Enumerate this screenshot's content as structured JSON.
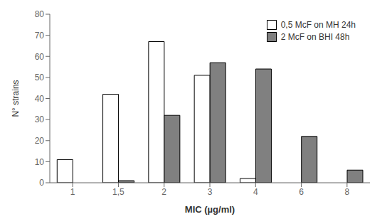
{
  "chart_data": {
    "type": "bar",
    "xlabel": "MIC (µg/ml)",
    "ylabel": "N° strains",
    "categories": [
      "1",
      "1,5",
      "2",
      "3",
      "4",
      "6",
      "8"
    ],
    "series": [
      {
        "name": "0,5 McF on MH 24h",
        "color": "#ffffff",
        "values": [
          11,
          42,
          67,
          51,
          2,
          0,
          0
        ]
      },
      {
        "name": "2 McF on BHI 48h",
        "color": "#808080",
        "values": [
          0,
          1,
          32,
          57,
          54,
          22,
          6
        ]
      }
    ],
    "ylim": [
      0,
      80
    ],
    "yticks": [
      0,
      10,
      20,
      30,
      40,
      50,
      60,
      70,
      80
    ],
    "grid": false,
    "legend": "upper right"
  }
}
